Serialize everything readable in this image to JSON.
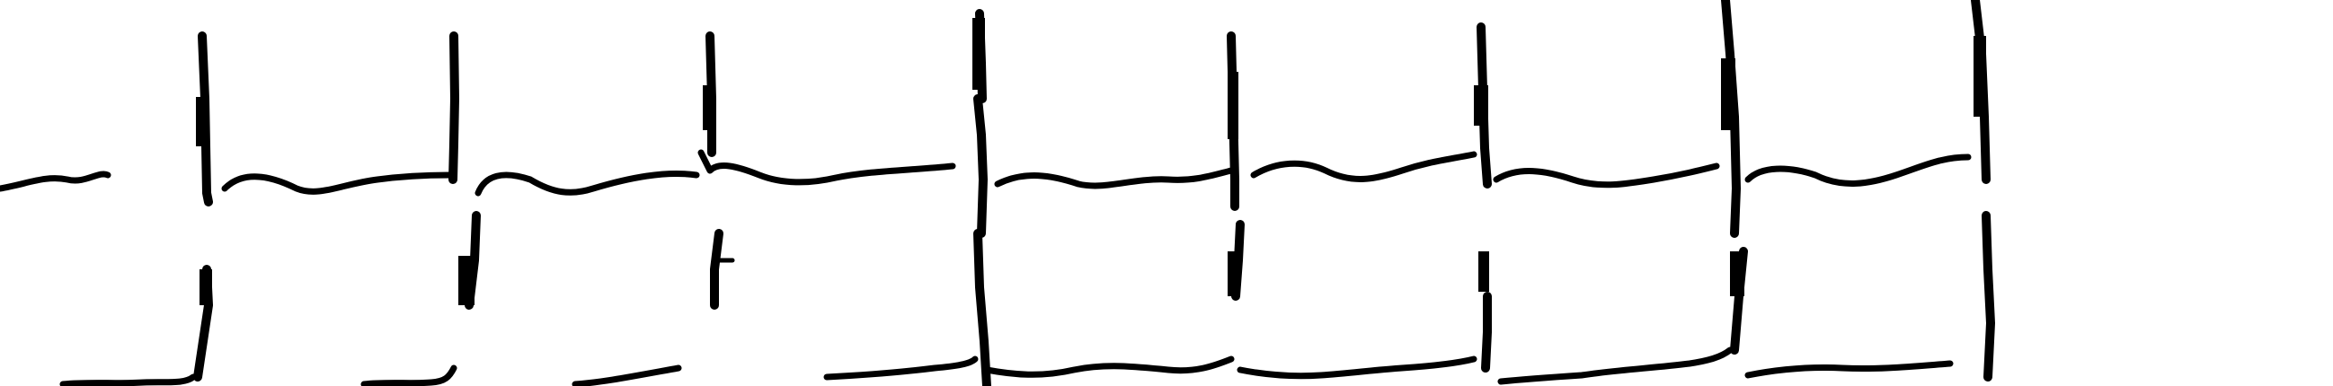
{
  "image": {
    "background_color": "#ffffff",
    "ink_color": "#000000"
  }
}
